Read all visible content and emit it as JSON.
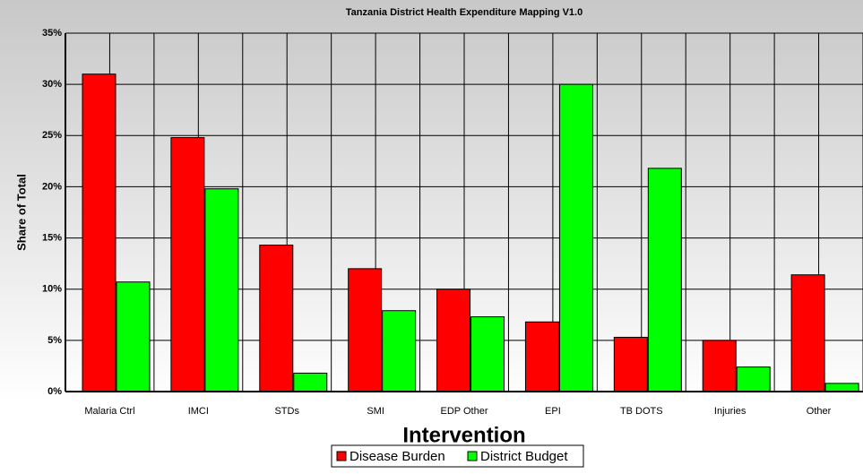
{
  "chart_data": {
    "type": "bar",
    "title": "Tanzania District Health Expenditure Mapping V1.0",
    "x_label": "Intervention",
    "y_label": "Share of Total",
    "categories": [
      "Malaria Ctrl",
      "IMCI",
      "STDs",
      "SMI",
      "EDP Other",
      "EPI",
      "TB DOTS",
      "Injuries",
      "Other"
    ],
    "series": [
      {
        "name": "Disease Burden",
        "color": "#ff0000",
        "values": [
          31,
          24.8,
          14.3,
          12,
          10,
          6.8,
          5.3,
          5,
          11.4
        ]
      },
      {
        "name": "District Budget",
        "color": "#00ff00",
        "values": [
          10.7,
          19.8,
          1.8,
          7.9,
          7.3,
          30,
          21.8,
          2.4,
          0.8
        ]
      }
    ],
    "ylim": [
      0,
      35
    ],
    "yticks": [
      {
        "value": 0,
        "label": "0%"
      },
      {
        "value": 5,
        "label": "5%"
      },
      {
        "value": 10,
        "label": "10%"
      },
      {
        "value": 15,
        "label": "15%"
      },
      {
        "value": 20,
        "label": "20%"
      },
      {
        "value": 25,
        "label": "25%"
      },
      {
        "value": 30,
        "label": "30%"
      },
      {
        "value": 35,
        "label": "35%"
      }
    ],
    "grid": true,
    "legend": "bottom"
  }
}
